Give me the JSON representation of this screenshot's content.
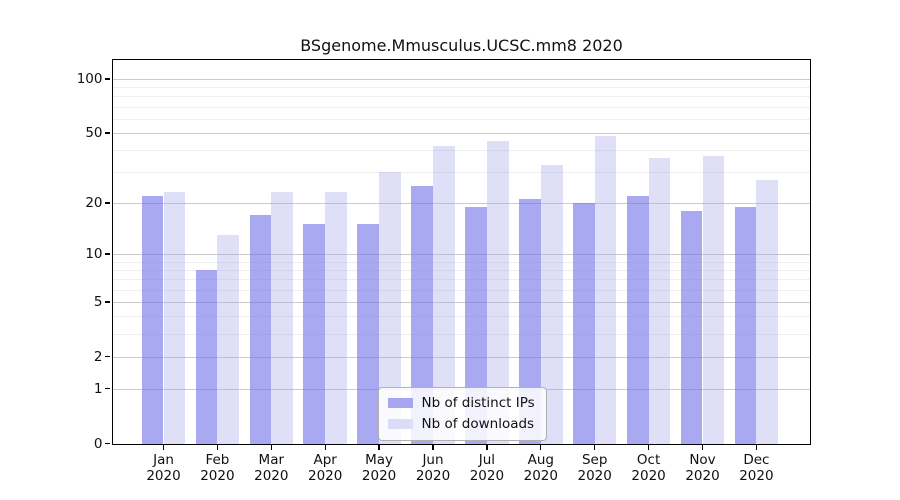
{
  "title": "BSgenome.Mmusculus.UCSC.mm8 2020",
  "chart_data": {
    "type": "bar",
    "title": "BSgenome.Mmusculus.UCSC.mm8 2020",
    "categories": [
      "Jan 2020",
      "Feb 2020",
      "Mar 2020",
      "Apr 2020",
      "May 2020",
      "Jun 2020",
      "Jul 2020",
      "Aug 2020",
      "Sep 2020",
      "Oct 2020",
      "Nov 2020",
      "Dec 2020"
    ],
    "series": [
      {
        "name": "Nb of distinct IPs",
        "color": "rgba(116,116,232,0.62)",
        "solid_color": "#a6a6f0",
        "values": [
          22,
          8,
          17,
          15,
          15,
          25,
          19,
          21,
          20,
          22,
          18,
          19
        ]
      },
      {
        "name": "Nb of downloads",
        "color": "rgba(160,160,235,0.34)",
        "solid_color": "#dcdcf8",
        "values": [
          23,
          13,
          23,
          23,
          30,
          42,
          45,
          33,
          48,
          36,
          37,
          27
        ]
      }
    ],
    "yscale": "log1p",
    "ylim": [
      0,
      128
    ],
    "xlabel": "",
    "ylabel": "",
    "y_tick_labels": [
      "100",
      "50",
      "20",
      "10",
      "5",
      "2",
      "1",
      "0"
    ],
    "y_tick_values": [
      100,
      50,
      20,
      10,
      5,
      2,
      1,
      0
    ],
    "y_minor_gridlines": [
      3,
      4,
      6,
      7,
      8,
      9,
      30,
      40,
      60,
      70,
      80,
      90
    ],
    "grid": true,
    "legend_position": "lower center",
    "colors": {
      "bar_ips": "#a6a6f0",
      "bar_downloads": "#dcdcf8",
      "grid_major": "#cbcbcb",
      "grid_minor": "#efefef",
      "axis": "#000000",
      "text": "#111111",
      "legend_border": "#b0b0b0"
    }
  }
}
